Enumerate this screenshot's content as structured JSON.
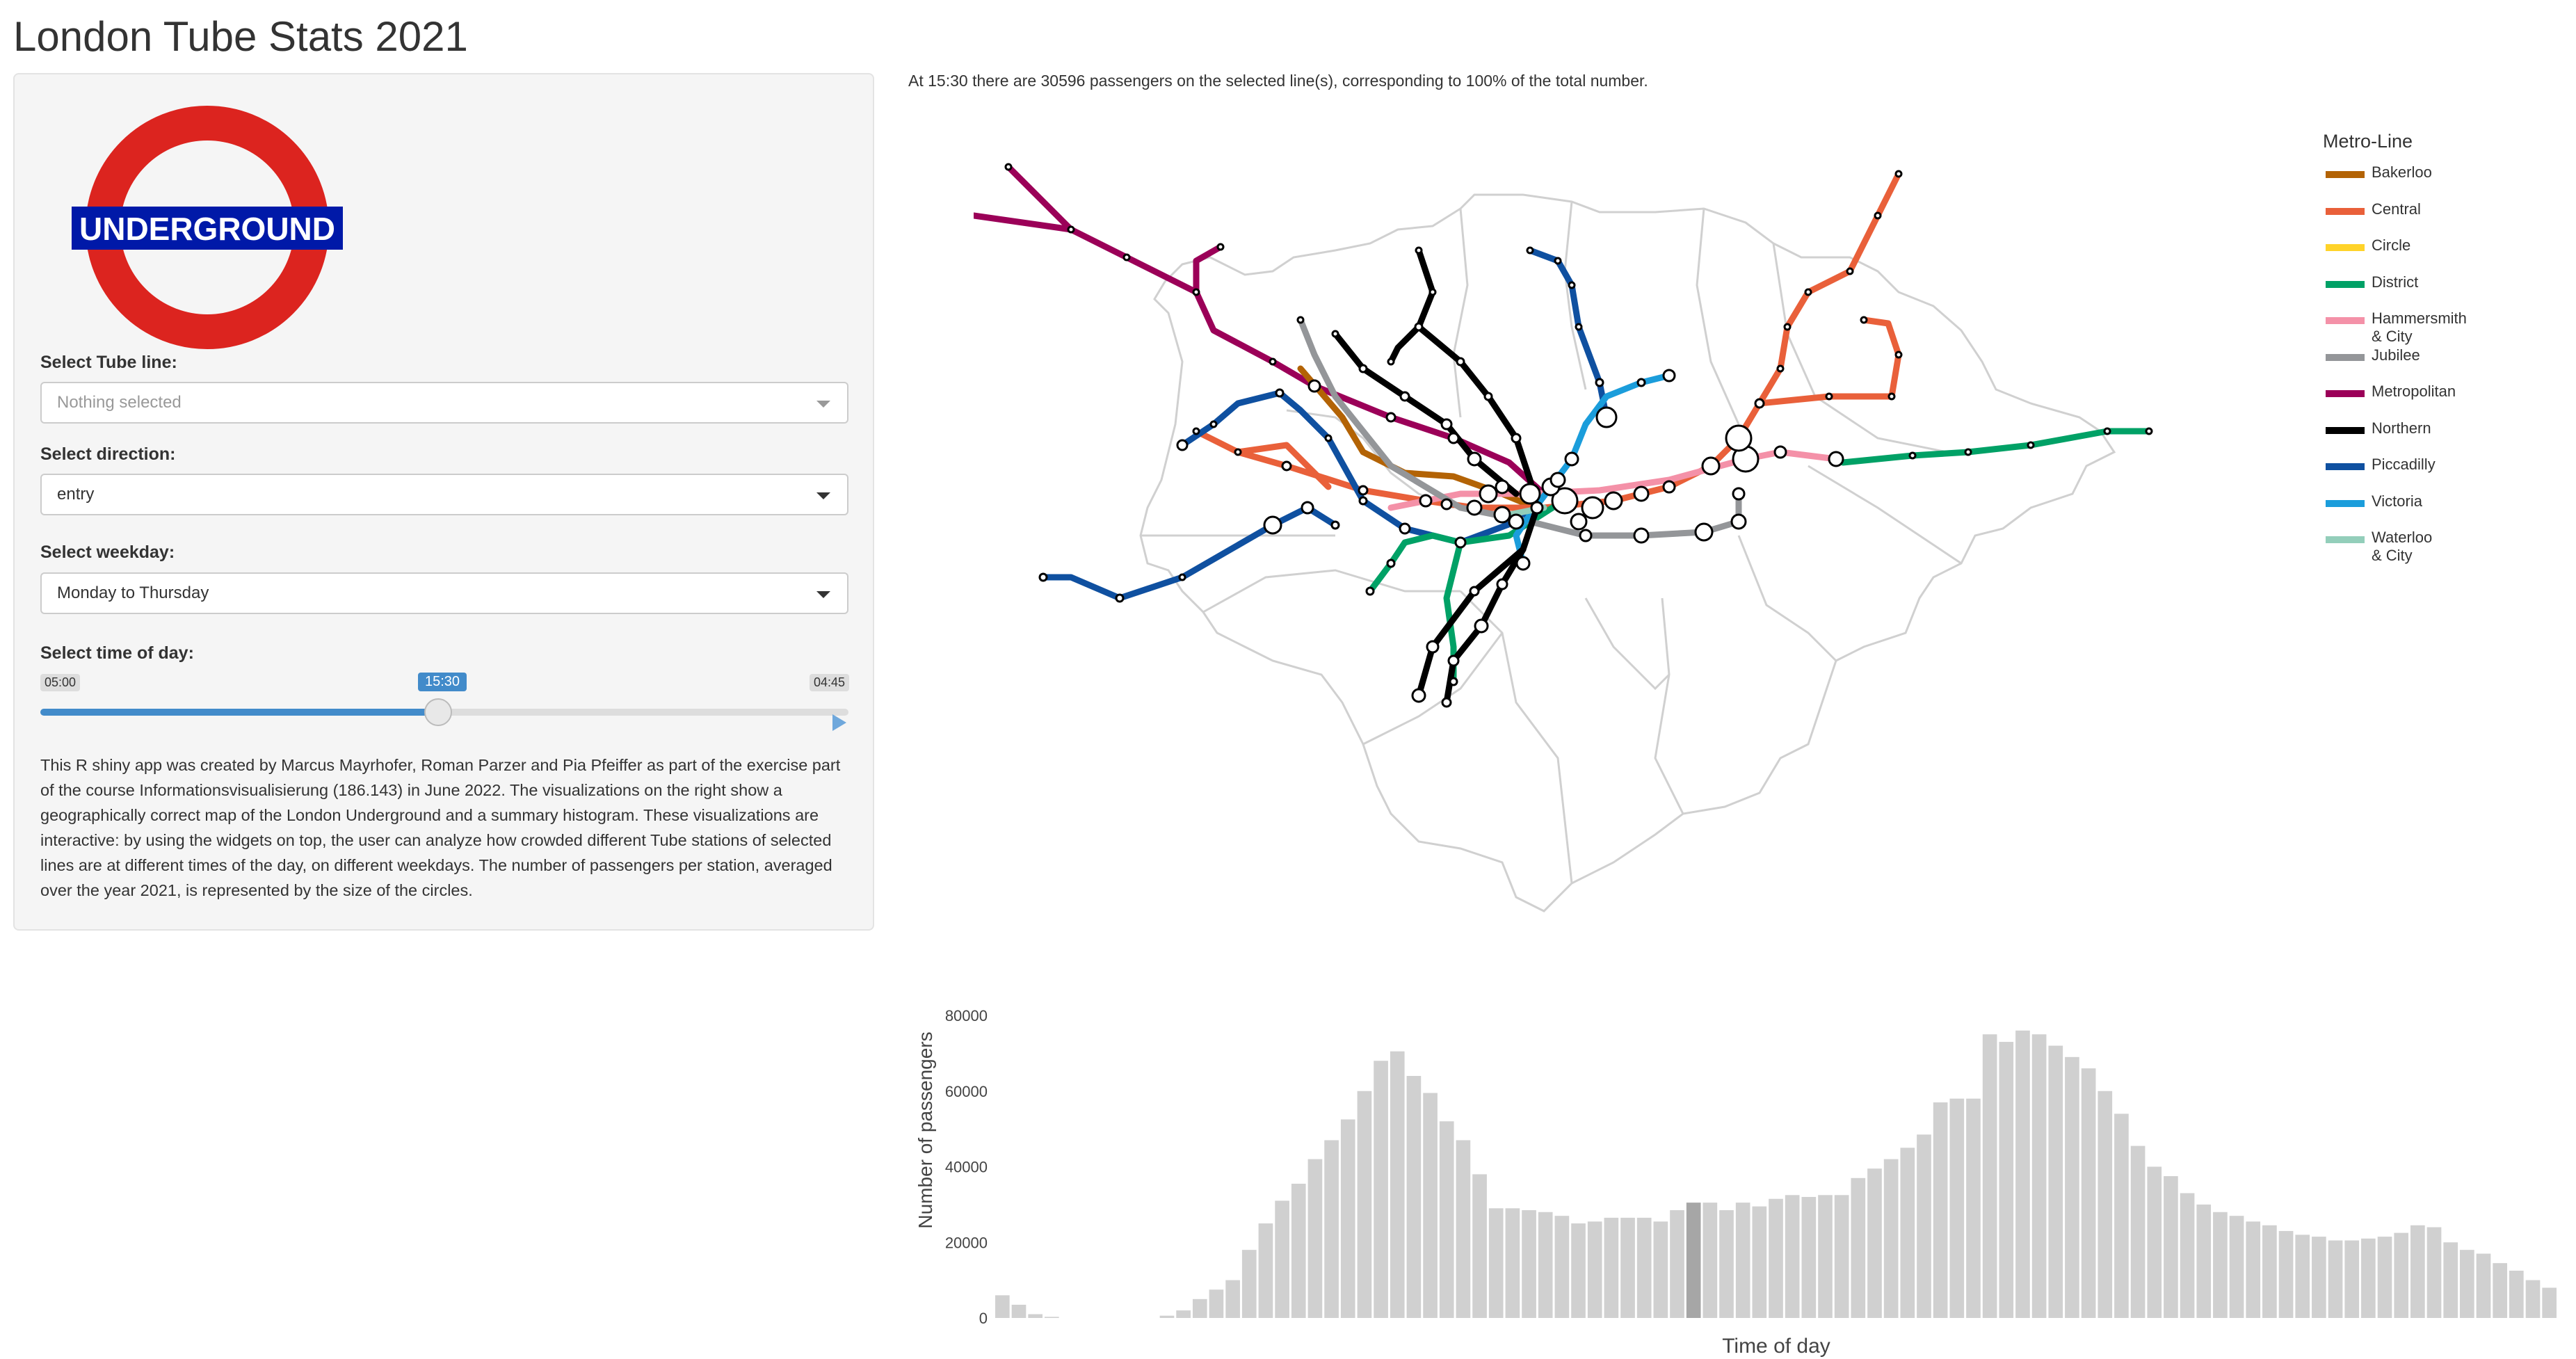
{
  "app": {
    "title": "London Tube Stats 2021"
  },
  "logo": {
    "text": "UNDERGROUND",
    "ring_color": "#dc241f",
    "bar_color": "#0019a8"
  },
  "controls": {
    "tube_line": {
      "label": "Select Tube line:",
      "placeholder": "Nothing selected"
    },
    "direction": {
      "label": "Select direction:",
      "value": "entry"
    },
    "weekday": {
      "label": "Select weekday:",
      "value": "Monday to Thursday"
    },
    "time": {
      "label": "Select time of day:",
      "min": "05:00",
      "max": "04:45",
      "value": "15:30",
      "fraction": 0.494
    }
  },
  "description": "This R shiny app was created by Marcus Mayrhofer, Roman Parzer and Pia Pfeiffer as part of the exercise part of the course Informationsvisualisierung (186.143) in June 2022. The visualizations on the right show a geographically correct map of the London Underground and a summary histogram. These visualizations are interactive: by using the widgets on top, the user can analyze how crowded different Tube stations of selected lines are at different times of the day, on different weekdays. The number of passengers per station, averaged over the year 2021, is represented by the size of the circles.",
  "status": "At 15:30 there are 30596 passengers on the selected line(s), corresponding to 100% of the total number.",
  "legend": {
    "title": "Metro-Line",
    "items": [
      {
        "name": "Bakerloo",
        "color": "#b36305"
      },
      {
        "name": "Central",
        "color": "#e9603a"
      },
      {
        "name": "Circle",
        "color": "#ffd329"
      },
      {
        "name": "District",
        "color": "#00a166"
      },
      {
        "name": "Hammersmith & City",
        "color": "#f491a8"
      },
      {
        "name": "Jubilee",
        "color": "#949699"
      },
      {
        "name": "Metropolitan",
        "color": "#9b0058"
      },
      {
        "name": "Northern",
        "color": "#000000"
      },
      {
        "name": "Piccadilly",
        "color": "#0f50a0"
      },
      {
        "name": "Victoria",
        "color": "#1b9ddb"
      },
      {
        "name": "Waterloo & City",
        "color": "#93ceba"
      }
    ]
  },
  "chart_data": {
    "type": "bar",
    "xlabel": "Time of day",
    "ylabel": "Number of passengers",
    "ylim": [
      0,
      80000
    ],
    "yticks": [
      0,
      20000,
      40000,
      60000,
      80000
    ],
    "highlight_index": 42,
    "bar_color": "#d0d0d0",
    "highlight_color": "#a6a6a6",
    "values": [
      6000,
      3500,
      1000,
      300,
      0,
      0,
      0,
      0,
      0,
      0,
      600,
      2000,
      5000,
      7500,
      10000,
      18000,
      25000,
      31000,
      35500,
      42000,
      47000,
      52500,
      60000,
      68000,
      70500,
      64000,
      59500,
      52000,
      47000,
      38000,
      29000,
      29000,
      28500,
      28000,
      27000,
      25000,
      25500,
      26500,
      26500,
      26500,
      25500,
      28500,
      30500,
      30500,
      28500,
      30500,
      29500,
      31500,
      32500,
      32000,
      32500,
      32500,
      37000,
      39500,
      42000,
      45000,
      48500,
      57000,
      58000,
      58000,
      75000,
      73000,
      76000,
      75000,
      72000,
      69000,
      66000,
      60000,
      54000,
      45500,
      40000,
      37500,
      33000,
      30000,
      28000,
      27000,
      25500,
      24500,
      23000,
      22000,
      21500,
      20500,
      20500,
      21000,
      21500,
      22500,
      24500,
      24000,
      20000,
      18000,
      17000,
      14500,
      12500,
      10000,
      8000
    ]
  }
}
